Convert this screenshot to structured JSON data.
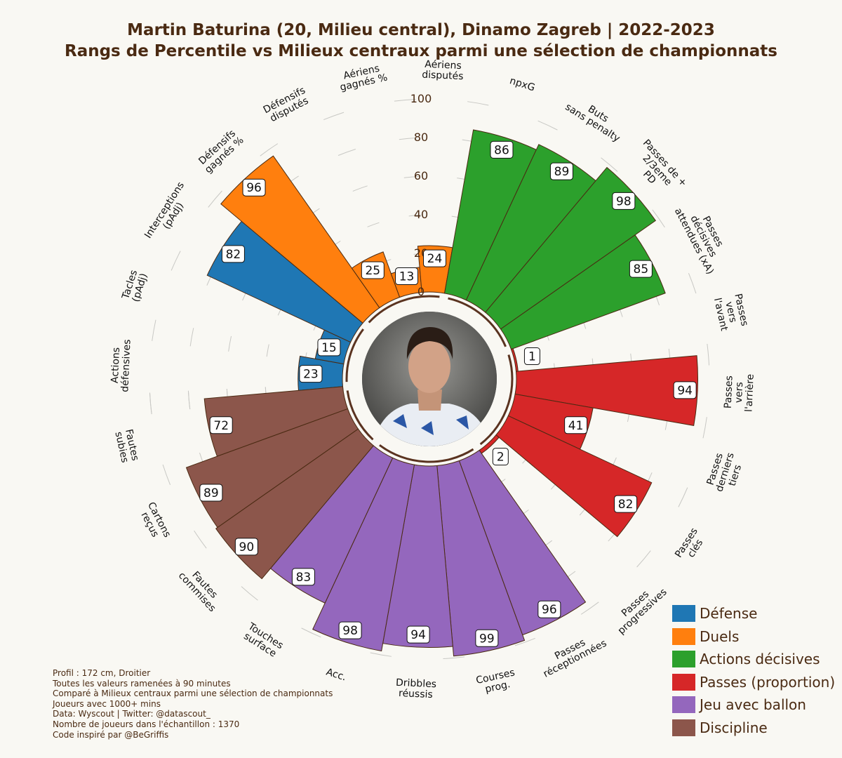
{
  "title": {
    "line1": "Martin Baturina (20, Milieu central), Dinamo Zagreb | 2022-2023",
    "line2": "Rangs de Percentile vs Milieux centraux parmi une sélection de championnats"
  },
  "chart_data": {
    "type": "radial-bar",
    "r_ticks": [
      0,
      20,
      40,
      60,
      80,
      100
    ],
    "r_range": [
      0,
      100
    ],
    "grid": true,
    "legend_position": "bottom-right",
    "groups": [
      {
        "name": "Défense",
        "color": "#1f77b4"
      },
      {
        "name": "Duels",
        "color": "#ff7f0e"
      },
      {
        "name": "Actions décisives",
        "color": "#2ca02c"
      },
      {
        "name": "Passes (proportion)",
        "color": "#d62728"
      },
      {
        "name": "Jeu avec ballon",
        "color": "#9467bd"
      },
      {
        "name": "Discipline",
        "color": "#8c564b"
      }
    ],
    "metrics": [
      {
        "label": [
          "Actions",
          "défensives"
        ],
        "value": 23,
        "group": 0
      },
      {
        "label": [
          "Tacles",
          "(pAdj)"
        ],
        "value": 15,
        "group": 0
      },
      {
        "label": [
          "Interceptions",
          "(pAdj)"
        ],
        "value": 82,
        "group": 0
      },
      {
        "label": [
          "Défensifs",
          "gagnés %"
        ],
        "value": 96,
        "group": 1
      },
      {
        "label": [
          "Défensifs",
          "disputés"
        ],
        "value": 25,
        "group": 1
      },
      {
        "label": [
          "Aériens",
          "gagnés %"
        ],
        "value": 13,
        "group": 1
      },
      {
        "label": [
          "Aériens",
          "disputés"
        ],
        "value": 24,
        "group": 1
      },
      {
        "label": [
          "npxG"
        ],
        "value": 86,
        "group": 2
      },
      {
        "label": [
          "Buts",
          "sans penalty"
        ],
        "value": 89,
        "group": 2
      },
      {
        "label": [
          "Passes de +",
          "2/3eme",
          "PD"
        ],
        "value": 98,
        "group": 2
      },
      {
        "label": [
          "Passes",
          "décisives",
          "attendues (xA)"
        ],
        "value": 85,
        "group": 2
      },
      {
        "label": [
          "Passes",
          "vers",
          "l'avant"
        ],
        "value": 1,
        "group": 3
      },
      {
        "label": [
          "Passes",
          "vers",
          "l'arrière"
        ],
        "value": 94,
        "group": 3
      },
      {
        "label": [
          "Passes",
          "derniers",
          "tiers"
        ],
        "value": 41,
        "group": 3
      },
      {
        "label": [
          "Passes",
          "clés"
        ],
        "value": 82,
        "group": 3
      },
      {
        "label": [
          "Passes",
          "progressives"
        ],
        "value": 2,
        "group": 3
      },
      {
        "label": [
          "Passes",
          "réceptionnées"
        ],
        "value": 96,
        "group": 4
      },
      {
        "label": [
          "Courses",
          "prog."
        ],
        "value": 99,
        "group": 4
      },
      {
        "label": [
          "Dribbles",
          "réussis"
        ],
        "value": 94,
        "group": 4
      },
      {
        "label": [
          "Acc."
        ],
        "value": 98,
        "group": 4
      },
      {
        "label": [
          "Touches",
          "surface"
        ],
        "value": 83,
        "group": 4
      },
      {
        "label": [
          "Fautes",
          "commises"
        ],
        "value": 90,
        "group": 5
      },
      {
        "label": [
          "Cartons",
          "reçus"
        ],
        "value": 89,
        "group": 5
      },
      {
        "label": [
          "Fautes",
          "subies"
        ],
        "value": 72,
        "group": 5
      }
    ]
  },
  "notes": [
    "Profil : 172 cm, Droitier",
    "Toutes les valeurs ramenées à 90 minutes",
    "Comparé à Milieux centraux parmi une sélection de championnats",
    "Joueurs avec 1000+ mins",
    "Data: Wyscout | Twitter: @datascout_",
    "Nombre de joueurs dans l'échantillon : 1370",
    "Code inspiré par @BeGriffis"
  ]
}
